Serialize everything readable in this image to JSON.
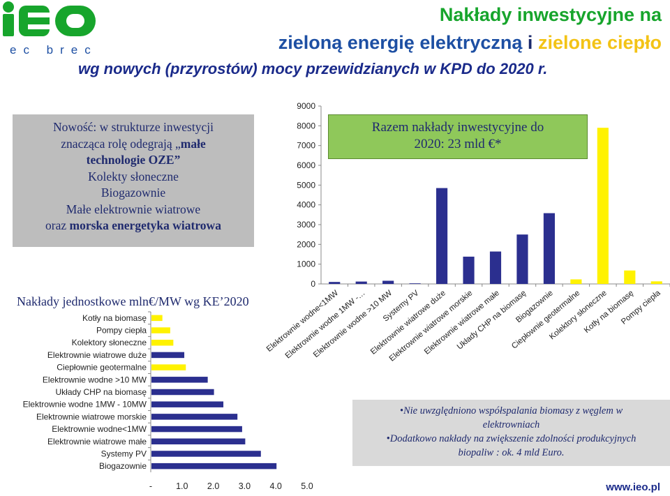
{
  "logo": {
    "letters": "iEO",
    "sub": "ec brec"
  },
  "title": {
    "line1": "Nakłady inwestycyjne na",
    "line2_a": "zieloną energię elektryczną",
    "line2_b": "i",
    "line2_c": "zielone ciepło",
    "line3": "wg  nowych (przyrostów) mocy przewidzianych w KPD do 2020 r."
  },
  "novelty_box": {
    "l1": "Nowość: w strukturze inwestycji",
    "l2a": "znacząca rolę odegrają „",
    "l2b": "małe",
    "l3": "technologie OZE”",
    "l4": "Kolekty słoneczne",
    "l5": "Biogazownie",
    "l6": "Małe elektrownie wiatrowe",
    "l7a": "oraz ",
    "l7b": "morska energetyka wiatrowa"
  },
  "total_box": {
    "l1": "Razem  nakłady inwestycyjne do",
    "l2": "2020: 23 mld €*"
  },
  "unit_chart_title": "Nakłady jednostkowe mln€/MW wg KE’2020",
  "notes": {
    "n1": "•Nie uwzględniono współspalania biomasy z węglem  w",
    "n1b": "elektrowniach",
    "n2": "•Dodatkowo  nakłady na zwiększenie  zdolności produkcyjnych",
    "n2b": "biopaliw : ok. 4 mld Euro."
  },
  "footer": "www.ieo.pl",
  "colors": {
    "navy": "#2b2f8f",
    "yellow": "#fff200",
    "green": "#17a52c",
    "blue": "#1d4fa3"
  },
  "chart_data": [
    {
      "type": "bar",
      "orientation": "vertical",
      "categories": [
        "Elektrownie wodne<1MW",
        "Elektrownie wodne 1MW -…",
        "Elektrownie wodne >10 MW",
        "Systemy PV",
        "Elektrownie wiatrowe duże",
        "Elektrownie wiatrowe morskie",
        "Elektrownie wiatrowe małe",
        "Układy CHP na biomasę",
        "Biogazownie",
        "Ciepłownie geotermalne",
        "Kolektory słoneczne",
        "Kotły na biomasę",
        "Pompy ciepła"
      ],
      "values": [
        100,
        120,
        160,
        30,
        4850,
        1380,
        1640,
        2500,
        3580,
        230,
        7900,
        680,
        130
      ],
      "bar_colors": [
        "#2b2f8f",
        "#2b2f8f",
        "#2b2f8f",
        "#2b2f8f",
        "#2b2f8f",
        "#2b2f8f",
        "#2b2f8f",
        "#2b2f8f",
        "#2b2f8f",
        "#fff200",
        "#fff200",
        "#fff200",
        "#fff200"
      ],
      "ylim": [
        0,
        9000
      ],
      "yticks": [
        "0",
        "1000",
        "2000",
        "3000",
        "4000",
        "5000",
        "6000",
        "7000",
        "8000",
        "9000"
      ],
      "grid": false
    },
    {
      "type": "bar",
      "orientation": "horizontal",
      "categories": [
        "Kotły na biomasę",
        "Pompy ciepła",
        "Kolektory słoneczne",
        "Elektrownie wiatrowe duże",
        "Ciepłownie geotermalne",
        "Elektrownie wodne >10 MW",
        "Układy CHP na biomasę",
        "Elektrownie wodne 1MW - 10MW",
        "Elektrownie wiatrowe morskie",
        "Elektrownie wodne<1MW",
        "Elektrownie wiatrowe małe",
        "Systemy PV",
        "Biogazownie"
      ],
      "values": [
        0.35,
        0.6,
        0.7,
        1.05,
        1.1,
        1.8,
        2.0,
        2.3,
        2.75,
        2.9,
        3.0,
        3.5,
        4.0
      ],
      "bar_colors": [
        "#fff200",
        "#fff200",
        "#fff200",
        "#2b2f8f",
        "#fff200",
        "#2b2f8f",
        "#2b2f8f",
        "#2b2f8f",
        "#2b2f8f",
        "#2b2f8f",
        "#2b2f8f",
        "#2b2f8f",
        "#2b2f8f"
      ],
      "xlim": [
        0,
        5
      ],
      "xticks": [
        "-",
        "1.0",
        "2.0",
        "3.0",
        "4.0",
        "5.0"
      ],
      "grid": false
    }
  ]
}
